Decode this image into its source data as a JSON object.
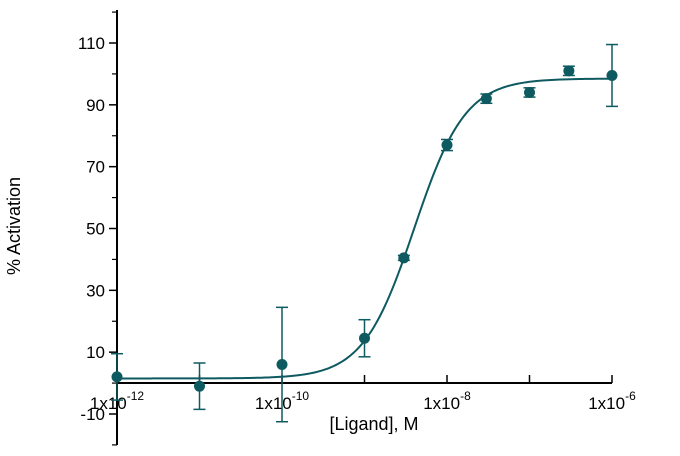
{
  "chart_data": {
    "type": "scatter",
    "title": "",
    "xlabel": "[Ligand], M",
    "ylabel": "% Activation",
    "x_scale": "log",
    "xlim": [
      1e-12,
      1e-06
    ],
    "ylim": [
      -15,
      120
    ],
    "grid": false,
    "legend": "none",
    "x_ticks": [
      {
        "value": 1e-12,
        "base": "1x10",
        "exp": "-12"
      },
      {
        "value": 1e-10,
        "base": "1x10",
        "exp": "-10"
      },
      {
        "value": 1e-08,
        "base": "1x10",
        "exp": "-8"
      },
      {
        "value": 1e-06,
        "base": "1x10",
        "exp": "-6"
      }
    ],
    "y_ticks": [
      {
        "value": -10,
        "label": "-10"
      },
      {
        "value": 10,
        "label": "10"
      },
      {
        "value": 30,
        "label": "30"
      },
      {
        "value": 50,
        "label": "50"
      },
      {
        "value": 70,
        "label": "70"
      },
      {
        "value": 90,
        "label": "90"
      },
      {
        "value": 110,
        "label": "110"
      }
    ],
    "series": [
      {
        "color": "#0e5a61",
        "points": [
          {
            "x": 1e-12,
            "y": 2,
            "err": 7.5
          },
          {
            "x": 1e-11,
            "y": -1,
            "err": 7.5
          },
          {
            "x": 1e-10,
            "y": 6,
            "err": 18.5
          },
          {
            "x": 1e-09,
            "y": 14.5,
            "err": 6
          },
          {
            "x": 3e-09,
            "y": 40.5,
            "err": 0.8
          },
          {
            "x": 1e-08,
            "y": 77,
            "err": 1.8
          },
          {
            "x": 3e-08,
            "y": 92,
            "err": 1.5
          },
          {
            "x": 1e-07,
            "y": 94,
            "err": 1.5
          },
          {
            "x": 3e-07,
            "y": 101,
            "err": 1.5
          },
          {
            "x": 1e-06,
            "y": 99.5,
            "err": 10
          }
        ]
      }
    ],
    "fit": {
      "model": "sigmoidal dose-response",
      "bottom": 1.5,
      "top": 98.5,
      "ec50": 4e-09,
      "hill": 1.4
    }
  }
}
